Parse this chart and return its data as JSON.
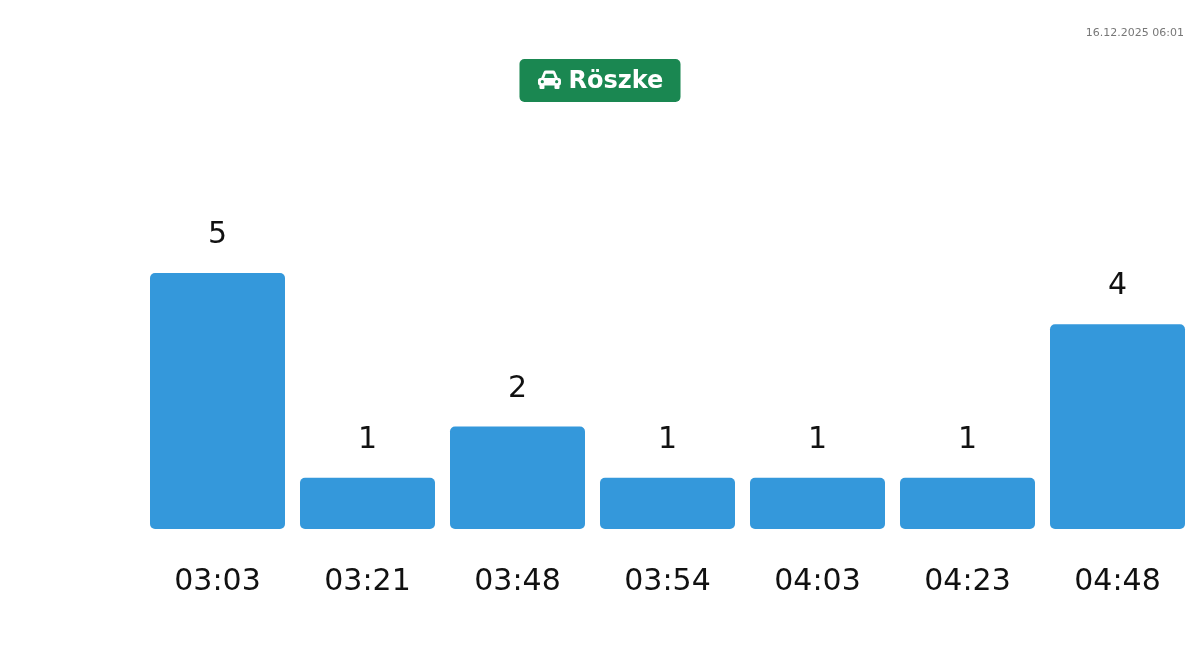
{
  "chart_data": {
    "type": "bar",
    "title": "Röszke",
    "categories": [
      "03:03",
      "03:21",
      "03:48",
      "03:54",
      "04:03",
      "04:23",
      "04:48"
    ],
    "values": [
      5,
      1,
      2,
      1,
      1,
      1,
      4
    ],
    "color": "#3498db",
    "data_labels": true,
    "annotations": [
      "16.12.2025 06:01"
    ]
  }
}
